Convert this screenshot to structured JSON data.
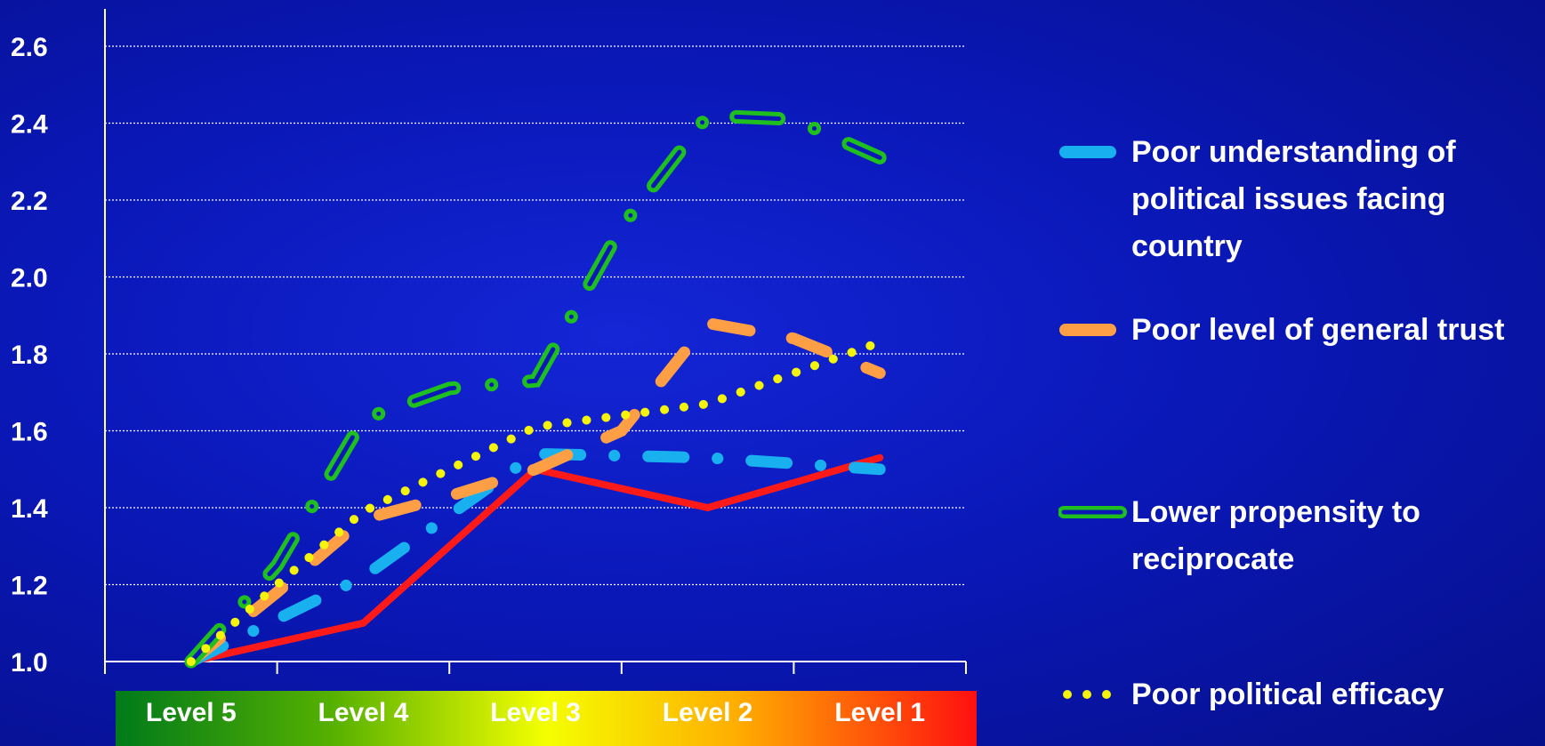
{
  "chart_data": {
    "type": "line",
    "categories": [
      "Level 5",
      "Level 4",
      "Level 3",
      "Level 2",
      "Level 1"
    ],
    "ylim": [
      1.0,
      2.6
    ],
    "yticks": [
      "1.0",
      "1.2",
      "1.4",
      "1.6",
      "1.8",
      "2.0",
      "2.2",
      "2.4",
      "2.6"
    ],
    "grid": true,
    "legend_position": "right",
    "series": [
      {
        "name": "Poor understanding of political issues facing country",
        "color": "#19b0f0",
        "style": "long-dash-dot",
        "x": [
          0.0,
          1.0,
          2.0,
          3.0,
          4.0
        ],
        "values": [
          1.0,
          1.22,
          1.54,
          1.53,
          1.5
        ]
      },
      {
        "name": "Poor level of general trust",
        "color": "#ff9f45",
        "style": "dash",
        "x": [
          0.0,
          0.5,
          1.0,
          1.5,
          2.0,
          2.5,
          3.0,
          3.5,
          4.0
        ],
        "values": [
          1.0,
          1.18,
          1.37,
          1.43,
          1.5,
          1.6,
          1.88,
          1.84,
          1.75
        ]
      },
      {
        "name": "Lower propensity to reciprocate",
        "color": "#1fbf1f",
        "style": "double-dash-dot",
        "x": [
          0.0,
          0.5,
          1.0,
          1.5,
          2.0,
          2.5,
          3.0,
          3.5,
          4.0
        ],
        "values": [
          1.0,
          1.25,
          1.63,
          1.71,
          1.73,
          2.13,
          2.42,
          2.41,
          2.31
        ]
      },
      {
        "name": "Poor political efficacy",
        "color": "#f4f40a",
        "style": "dot",
        "x": [
          0.0,
          0.5,
          1.0,
          1.5,
          2.0,
          2.5,
          3.0,
          3.5,
          4.0
        ],
        "values": [
          1.0,
          1.2,
          1.39,
          1.5,
          1.61,
          1.64,
          1.67,
          1.75,
          1.83
        ]
      },
      {
        "name": "",
        "color": "#ff1a1a",
        "style": "solid",
        "x": [
          0.0,
          1.0,
          2.0,
          3.0,
          4.0
        ],
        "values": [
          1.0,
          1.1,
          1.5,
          1.4,
          1.53
        ]
      }
    ]
  },
  "colors": {
    "band_start": "#007a1a",
    "band_mid": "#f4ff00",
    "band_end": "#ff1010"
  }
}
